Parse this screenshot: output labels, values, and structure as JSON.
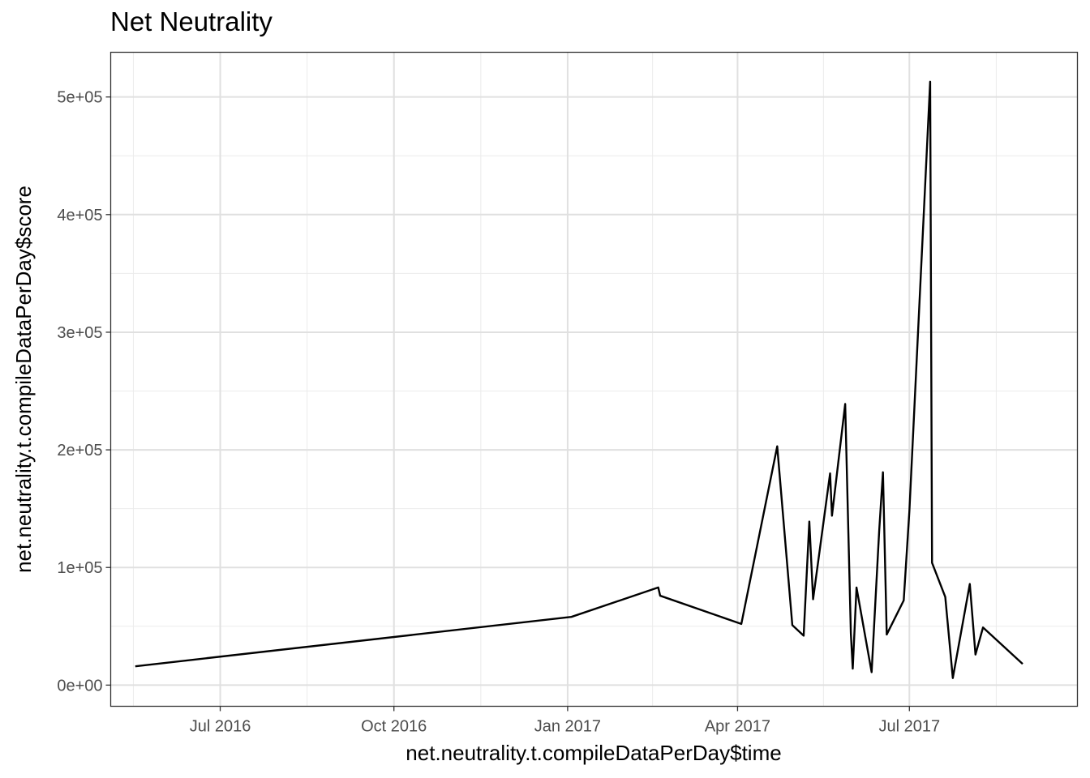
{
  "chart_data": {
    "type": "line",
    "title": "Net Neutrality",
    "xlabel": "net.neutrality.t.compileDataPerDay$time",
    "ylabel": "net.neutrality.t.compileDataPerDay$score",
    "x_ticks": [
      {
        "label": "Jul 2016",
        "date": "2016-07-01"
      },
      {
        "label": "Oct 2016",
        "date": "2016-10-01"
      },
      {
        "label": "Jan 2017",
        "date": "2017-01-01"
      },
      {
        "label": "Apr 2017",
        "date": "2017-04-01"
      },
      {
        "label": "Jul 2017",
        "date": "2017-07-01"
      }
    ],
    "y_ticks": [
      {
        "label": "0e+00",
        "value": 0
      },
      {
        "label": "1e+05",
        "value": 100000
      },
      {
        "label": "2e+05",
        "value": 200000
      },
      {
        "label": "3e+05",
        "value": 300000
      },
      {
        "label": "4e+05",
        "value": 400000
      },
      {
        "label": "5e+05",
        "value": 500000
      }
    ],
    "xlim": [
      "2016-05-04",
      "2017-09-28"
    ],
    "ylim": [
      -18000,
      538000
    ],
    "grid": true,
    "line_color": "#000000",
    "series": [
      {
        "points": [
          {
            "x": "2016-05-17",
            "y": 16000
          },
          {
            "x": "2017-01-03",
            "y": 58000
          },
          {
            "x": "2017-02-18",
            "y": 83000
          },
          {
            "x": "2017-02-19",
            "y": 76000
          },
          {
            "x": "2017-04-03",
            "y": 52000
          },
          {
            "x": "2017-04-22",
            "y": 203000
          },
          {
            "x": "2017-04-30",
            "y": 51000
          },
          {
            "x": "2017-05-06",
            "y": 42000
          },
          {
            "x": "2017-05-09",
            "y": 139000
          },
          {
            "x": "2017-05-11",
            "y": 73000
          },
          {
            "x": "2017-05-20",
            "y": 180000
          },
          {
            "x": "2017-05-21",
            "y": 144000
          },
          {
            "x": "2017-05-28",
            "y": 239000
          },
          {
            "x": "2017-05-31",
            "y": 44000
          },
          {
            "x": "2017-06-01",
            "y": 14000
          },
          {
            "x": "2017-06-03",
            "y": 83000
          },
          {
            "x": "2017-06-11",
            "y": 11000
          },
          {
            "x": "2017-06-15",
            "y": 131000
          },
          {
            "x": "2017-06-17",
            "y": 181000
          },
          {
            "x": "2017-06-19",
            "y": 43000
          },
          {
            "x": "2017-06-28",
            "y": 72000
          },
          {
            "x": "2017-07-01",
            "y": 148000
          },
          {
            "x": "2017-07-12",
            "y": 513000
          },
          {
            "x": "2017-07-13",
            "y": 104000
          },
          {
            "x": "2017-07-20",
            "y": 75000
          },
          {
            "x": "2017-07-24",
            "y": 6000
          },
          {
            "x": "2017-08-02",
            "y": 86000
          },
          {
            "x": "2017-08-05",
            "y": 26000
          },
          {
            "x": "2017-08-09",
            "y": 49000
          },
          {
            "x": "2017-08-30",
            "y": 18000
          }
        ]
      }
    ]
  }
}
